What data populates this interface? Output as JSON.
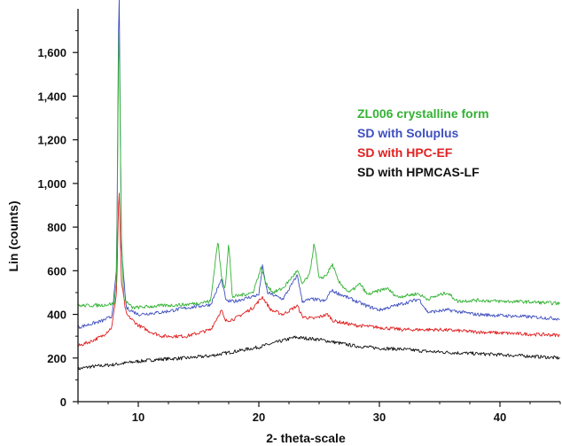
{
  "chart_data": {
    "type": "line",
    "title": "",
    "xlabel": "2- theta-scale",
    "ylabel": "Lin (counts)",
    "xlim": [
      5,
      45
    ],
    "ylim": [
      0,
      1800
    ],
    "xticks": [
      10,
      20,
      30,
      40
    ],
    "xtick_labels": [
      "10",
      "20",
      "30",
      "40"
    ],
    "yticks": [
      0,
      200,
      400,
      600,
      800,
      1000,
      1200,
      1400,
      1600
    ],
    "ytick_labels": [
      "0",
      "200",
      "400",
      "600",
      "800",
      "1,000",
      "1,200",
      "1,400",
      "1,600"
    ],
    "grid": false,
    "legend_position": "right",
    "series": [
      {
        "name": "ZL006 crystalline form",
        "color": "#33b233",
        "x": [
          5,
          7,
          8,
          8.2,
          8.4,
          8.6,
          8.8,
          9.5,
          12,
          14,
          16,
          16.6,
          16.9,
          17.2,
          17.5,
          17.8,
          19.5,
          20.2,
          20.6,
          21.2,
          22,
          23.2,
          23.6,
          24.2,
          24.6,
          25,
          25.6,
          26.1,
          26.6,
          27.5,
          28.4,
          29,
          30.6,
          31.5,
          33.2,
          34,
          35.6,
          36.5,
          38,
          40,
          42,
          45
        ],
        "y": [
          440,
          442,
          450,
          560,
          1800,
          760,
          470,
          430,
          440,
          445,
          460,
          740,
          570,
          520,
          730,
          480,
          500,
          615,
          540,
          500,
          520,
          600,
          540,
          580,
          730,
          560,
          580,
          630,
          550,
          500,
          540,
          490,
          520,
          480,
          495,
          470,
          500,
          460,
          465,
          460,
          458,
          450
        ]
      },
      {
        "name": "SD with Soluplus",
        "color": "#3f4fbf",
        "x": [
          5,
          6,
          7,
          7.8,
          8.2,
          8.4,
          8.6,
          9,
          10,
          12,
          14,
          16,
          16.9,
          17.3,
          18,
          20,
          20.3,
          20.7,
          22,
          23.2,
          23.6,
          24.5,
          25.5,
          26,
          28.9,
          30,
          33.3,
          34,
          35.7,
          38,
          40,
          42,
          45
        ],
        "y": [
          340,
          355,
          370,
          390,
          600,
          1970,
          700,
          430,
          400,
          410,
          430,
          445,
          560,
          460,
          460,
          490,
          620,
          500,
          470,
          580,
          460,
          470,
          460,
          510,
          440,
          420,
          470,
          410,
          420,
          400,
          395,
          390,
          380
        ]
      },
      {
        "name": "SD with HPC-EF",
        "color": "#e02020",
        "x": [
          5,
          6,
          7,
          7.8,
          8.2,
          8.4,
          8.6,
          9,
          10,
          11,
          12,
          14,
          16,
          16.9,
          17.2,
          18,
          19.5,
          20.3,
          21,
          22,
          23.2,
          23.6,
          24.5,
          25.7,
          26.2,
          28,
          30,
          32,
          35,
          38,
          40,
          42,
          45
        ],
        "y": [
          255,
          275,
          300,
          340,
          500,
          1000,
          550,
          400,
          350,
          320,
          300,
          300,
          330,
          420,
          370,
          380,
          430,
          480,
          420,
          400,
          440,
          390,
          380,
          400,
          370,
          350,
          340,
          330,
          330,
          320,
          315,
          310,
          305
        ]
      },
      {
        "name": "SD with HPMCAS-LF",
        "color": "#111111",
        "x": [
          5,
          6,
          8,
          10,
          12,
          14,
          16,
          18,
          20,
          21,
          22,
          23,
          24,
          25,
          26,
          27,
          28,
          30,
          32,
          34,
          36,
          38,
          40,
          42,
          45
        ],
        "y": [
          150,
          160,
          170,
          185,
          195,
          200,
          210,
          230,
          250,
          265,
          280,
          295,
          290,
          285,
          275,
          265,
          255,
          245,
          240,
          230,
          225,
          220,
          215,
          210,
          200
        ]
      }
    ]
  }
}
